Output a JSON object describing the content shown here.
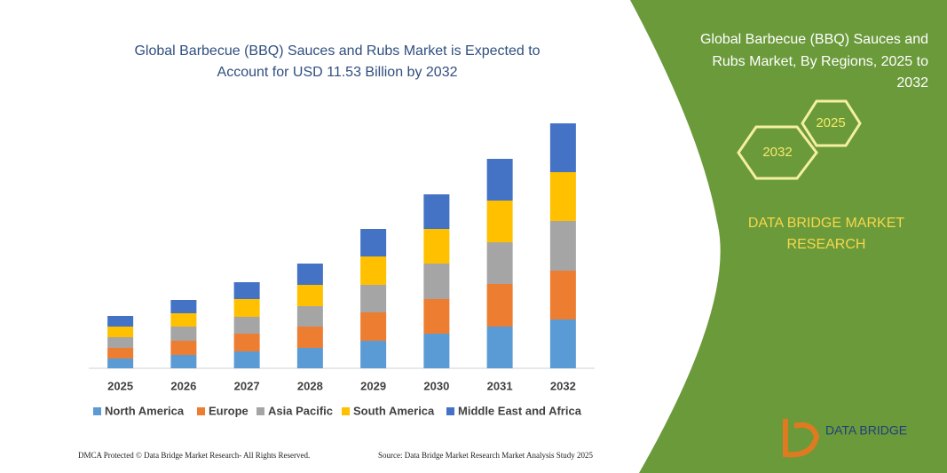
{
  "chart_data": {
    "type": "stacked-bar",
    "title": [
      "Global Barbecue (BBQ) Sauces and Rubs Market is Expected to",
      "Account for USD 11.53 Billion by 2032"
    ],
    "categories": [
      "2025",
      "2026",
      "2027",
      "2028",
      "2029",
      "2030",
      "2031",
      "2032"
    ],
    "series": [
      {
        "name": "North America",
        "color": "#5b9bd5",
        "values": [
          11,
          15,
          19,
          23,
          31,
          39,
          47,
          55
        ]
      },
      {
        "name": "Europe",
        "color": "#ed7d31",
        "values": [
          12,
          16,
          20,
          24,
          32,
          39,
          48,
          55
        ]
      },
      {
        "name": "Asia Pacific",
        "color": "#a5a5a5",
        "values": [
          12,
          16,
          19,
          23,
          31,
          40,
          47,
          56
        ]
      },
      {
        "name": "South America",
        "color": "#ffc000",
        "values": [
          12,
          15,
          20,
          24,
          32,
          39,
          47,
          55
        ]
      },
      {
        "name": "Middle East and Africa",
        "color": "#4472c4",
        "values": [
          12,
          15,
          19,
          24,
          31,
          39,
          47,
          55
        ]
      }
    ],
    "ylim": [
      0,
      300
    ]
  },
  "panel": {
    "title": [
      "Global Barbecue (BBQ) Sauces and",
      "Rubs Market, By Regions, 2025 to",
      "2032"
    ],
    "hexagons": [
      "2025",
      "2032"
    ],
    "brand": [
      "DATA BRIDGE MARKET",
      "RESEARCH"
    ],
    "logo": "DATA BRIDGE"
  },
  "footer": {
    "left": "DMCA Protected © Data Bridge Market Research- All Rights Reserved.",
    "right": "Source: Data Bridge Market Research Market Analysis Study 2025"
  }
}
